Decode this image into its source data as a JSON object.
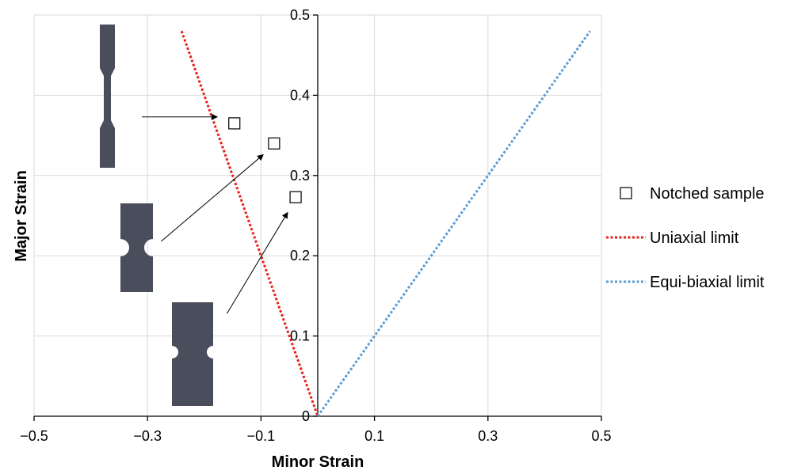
{
  "chart_data": {
    "type": "scatter",
    "xlabel": "Minor Strain",
    "ylabel": "Major Strain",
    "xlim": [
      -0.5,
      0.5
    ],
    "ylim": [
      0,
      0.5
    ],
    "x_ticks": [
      -0.5,
      -0.3,
      -0.1,
      0.1,
      0.3,
      0.5
    ],
    "x_tick_labels": [
      "−0.5",
      "−0.3",
      "−0.1",
      "0.1",
      "0.3",
      "0.5"
    ],
    "x_gridlines": [
      -0.5,
      -0.3,
      -0.1,
      0.1,
      0.3,
      0.5
    ],
    "y_ticks": [
      0,
      0.1,
      0.2,
      0.3,
      0.4,
      0.5
    ],
    "y_tick_labels": [
      "0",
      "0.1",
      "0.2",
      "0.3",
      "0.4",
      "0.5"
    ],
    "y_gridlines": [
      0.1,
      0.2,
      0.3,
      0.4,
      0.5
    ],
    "grid": true,
    "legend_position": "right",
    "series": [
      {
        "name": "Notched sample",
        "kind": "scatter",
        "marker": "open-square",
        "color": "#000000",
        "points": [
          [
            -0.147,
            0.365
          ],
          [
            -0.077,
            0.34
          ],
          [
            -0.039,
            0.273
          ]
        ]
      },
      {
        "name": "Uniaxial limit",
        "kind": "line",
        "style": "dotted",
        "color": "#e8201c",
        "points": [
          [
            -0.24,
            0.48
          ],
          [
            0.0,
            0.0
          ]
        ]
      },
      {
        "name": "Equi-biaxial limit",
        "kind": "line",
        "style": "dotted",
        "color": "#5b9bd5",
        "points": [
          [
            0.0,
            0.0
          ],
          [
            0.48,
            0.48
          ]
        ]
      }
    ],
    "annotations": [
      {
        "type": "arrow",
        "from": [
          -0.31,
          0.373
        ],
        "to": [
          -0.177,
          0.373
        ]
      },
      {
        "type": "arrow",
        "from": [
          -0.276,
          0.218
        ],
        "to": [
          -0.096,
          0.326
        ]
      },
      {
        "type": "arrow",
        "from": [
          -0.16,
          0.128
        ],
        "to": [
          -0.053,
          0.254
        ]
      }
    ],
    "specimen_icons": [
      {
        "name": "uniaxial-specimen-icon",
        "color": "#4a4d5c"
      },
      {
        "name": "notched-specimen-icon",
        "color": "#4a4d5c"
      },
      {
        "name": "wide-notched-specimen-icon",
        "color": "#4a4d5c"
      }
    ]
  }
}
